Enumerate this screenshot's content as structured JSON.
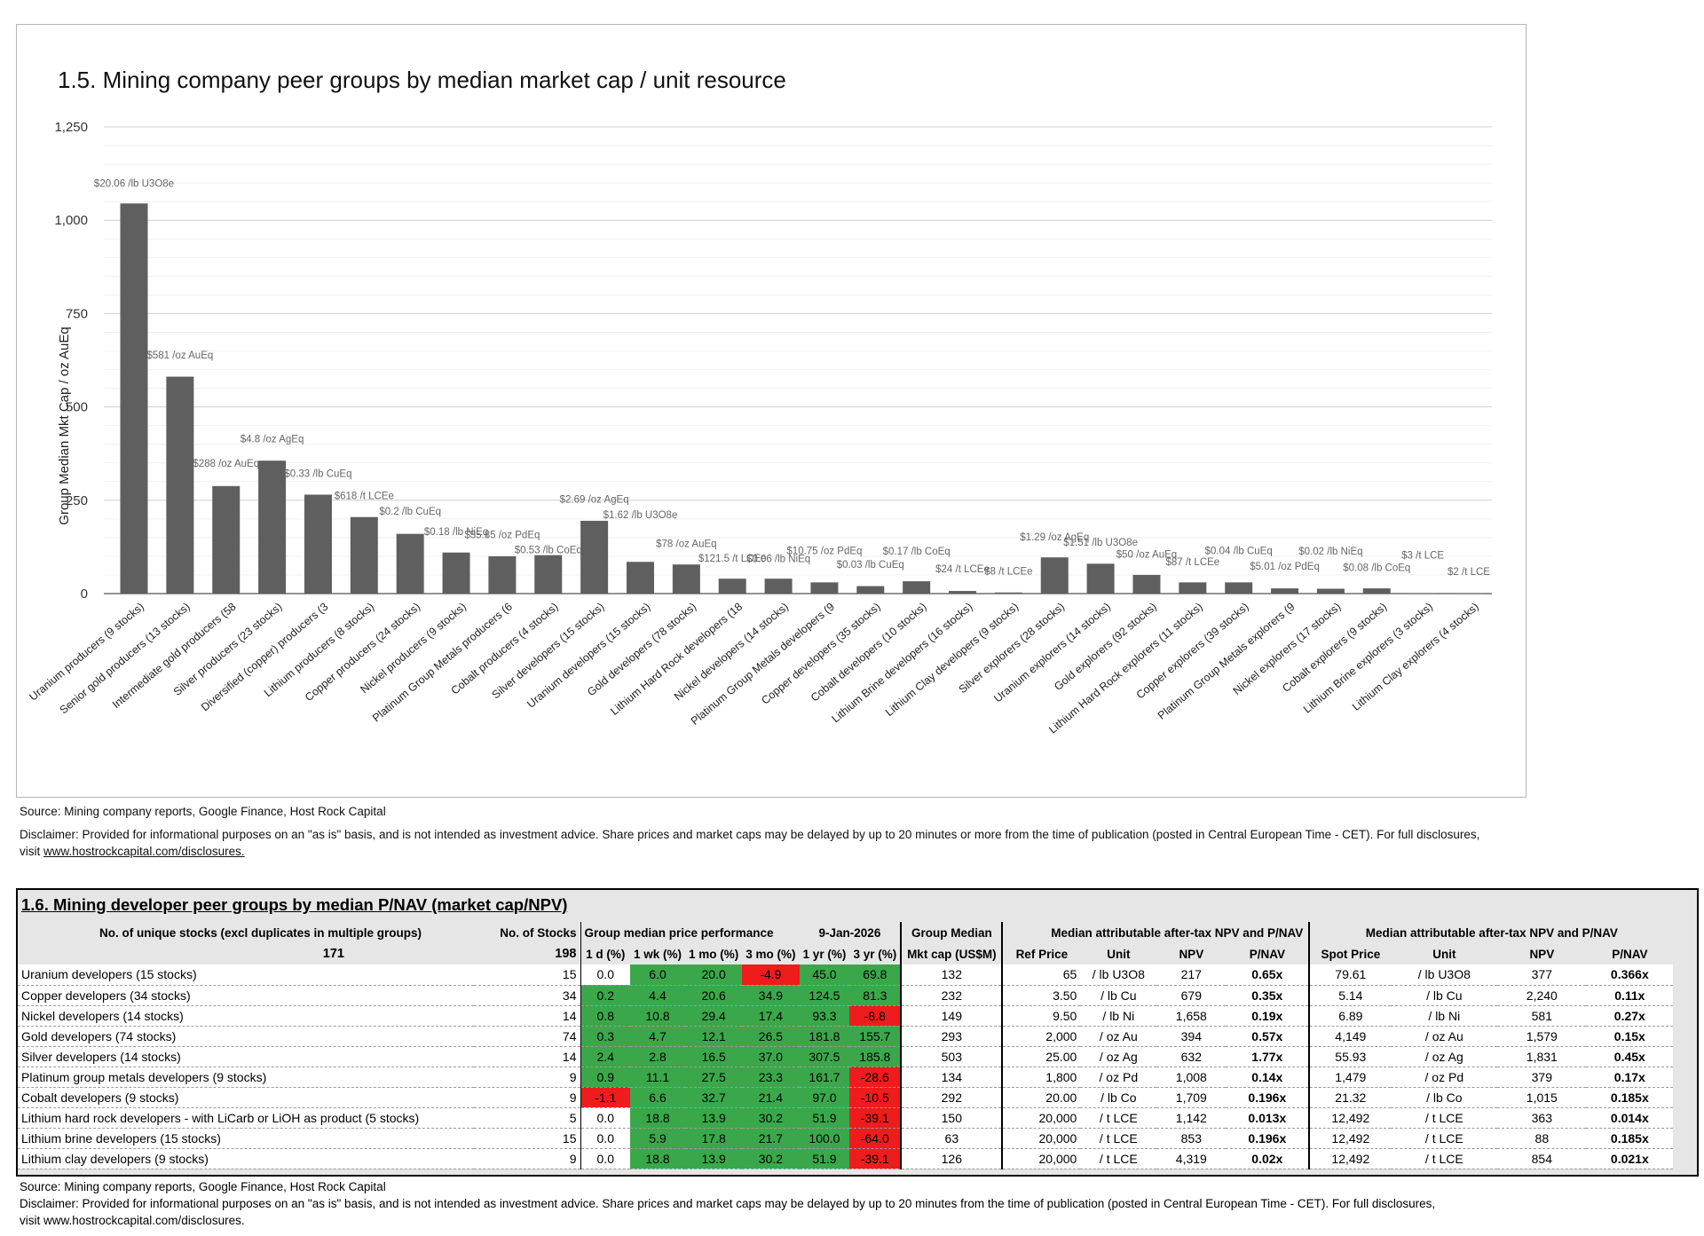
{
  "chart_data": {
    "type": "bar",
    "title": "1.5. Mining company peer groups by median market cap / unit resource",
    "xlabel": "",
    "ylabel": "Group Median Mkt Cap / oz AuEq",
    "ylim": [
      0,
      1250
    ],
    "yticks": [
      0,
      250,
      500,
      750,
      "1,000",
      "1,250"
    ],
    "ytick_values": [
      0,
      250,
      500,
      750,
      1000,
      1250
    ],
    "grid": true,
    "categories": [
      "Uranium producers (9 stocks)",
      "Senior gold producers (13 stocks)",
      "Intermediate gold producers (58",
      "Silver producers (23 stocks)",
      "Diversified (copper) producers (3",
      "Lithium producers (8 stocks)",
      "Copper producers (24 stocks)",
      "Nickel producers (9 stocks)",
      "Platinum Group Metals producers (6",
      "Cobalt producers (4 stocks)",
      "Silver developers (15 stocks)",
      "Uranium developers (15 stocks)",
      "Gold developers (78 stocks)",
      "Lithium Hard Rock developers (18",
      "Nickel developers (14 stocks)",
      "Platinum Group Metals developers (9",
      "Copper developers (35 stocks)",
      "Cobalt developers (10 stocks)",
      "Lithium Brine developers (16 stocks)",
      "Lithium Clay developers (9 stocks)",
      "Silver explorers (28 stocks)",
      "Uranium explorers (14 stocks)",
      "Gold explorers (92 stocks)",
      "Lithium Hard Rock explorers (11 stocks)",
      "Copper explorers (39 stocks)",
      "Platinum Group Metals explorers (9",
      "Nickel explorers (17 stocks)",
      "Cobalt explorers (9 stocks)",
      "Lithium Brine explorers (3 stocks)",
      "Lithium Clay explorers (4 stocks)"
    ],
    "values": [
      1045,
      581,
      288,
      356,
      265,
      205,
      160,
      110,
      100,
      103,
      195,
      85,
      78,
      40,
      40,
      30,
      20,
      33,
      7,
      3,
      97,
      80,
      50,
      30,
      30,
      14,
      13,
      14,
      1,
      1
    ],
    "data_labels": [
      "$20.06 /lb U3O8e",
      "$581 /oz AuEq",
      "$288 /oz AuEq",
      "$4.8 /oz AgEq",
      "$0.33 /lb CuEq",
      "$618 /t LCEe",
      "$0.2 /lb CuEq",
      "$0.18 /lb NiEq",
      "$35.85 /oz PdEq",
      "$0.53 /lb CoEq",
      "$2.69 /oz AgEq",
      "$1.62 /lb U3O8e",
      "$78 /oz AuEq",
      "$121.5 /t LCEe",
      "$0.06 /lb NiEq",
      "$10.75 /oz PdEq",
      "$0.03 /lb CuEq",
      "$0.17 /lb CoEq",
      "$24 /t LCEe",
      "$8 /t LCEe",
      "$1.29 /oz AgEq",
      "$1.51 /lb U3O8e",
      "$50 /oz AuEq",
      "$87 /t LCEe",
      "$0.04 /lb CuEq",
      "$5.01 /oz PdEq",
      "$0.02 /lb NiEq",
      "$0.08 /lb CoEq",
      "$3 /t LCE",
      "$2 /t LCE"
    ],
    "label_values": [
      1090,
      630,
      340,
      405,
      312,
      253,
      212,
      157,
      148,
      108,
      243,
      202,
      125,
      86,
      84,
      106,
      69,
      105,
      57,
      51,
      143,
      128,
      96,
      76,
      106,
      64,
      105,
      61,
      94,
      50
    ],
    "bar_color": "#5f5f5f"
  },
  "chart_source": "Source: Mining company reports, Google Finance, Host Rock Capital",
  "chart_disclaimer": "Disclaimer: Provided for informational purposes on an \"as is\" basis, and is not intended as investment advice. Share prices and market caps may be delayed by up to 20 minutes or more from the time of publication (posted in Central European Time - CET). For full disclosures,",
  "chart_disclaimer_visit": "visit",
  "chart_disclaimer_link": "www.hostrockcapital.com/disclosures.",
  "table": {
    "title": "1.6. Mining developer peer groups by median P/NAV (market cap/NPV)",
    "hdr_unique": "No. of unique stocks (excl duplicates in multiple groups)",
    "hdr_nstocks": "No. of Stocks",
    "hdr_perf": "Group median price performance",
    "hdr_date": "9-Jan-2026",
    "hdr_group_median": "Group Median",
    "hdr_npv1": "Median attributable after-tax NPV and P/NAV",
    "hdr_npv2": "Median attributable after-tax NPV and P/NAV",
    "unique_count": "171",
    "total_stocks": "198",
    "col_1d": "1 d (%)",
    "col_1wk": "1 wk (%)",
    "col_1mo": "1 mo (%)",
    "col_3mo": "3 mo (%)",
    "col_1yr": "1 yr (%)",
    "col_3yr": "3 yr (%)",
    "col_mktcap": "Mkt cap (US$M)",
    "col_refprice": "Ref Price",
    "col_unit": "Unit",
    "col_npv": "NPV",
    "col_pnav": "P/NAV",
    "col_spot": "Spot Price",
    "col_unit2": "Unit",
    "col_npv2": "NPV",
    "col_pnav2": "P/NAV",
    "rows": [
      {
        "name": "Uranium developers (15 stocks)",
        "n": "15",
        "d1": "0.0",
        "wk1": "6.0",
        "mo1": "20.0",
        "mo3": "-4.9",
        "yr1": "45.0",
        "yr3": "69.8",
        "mcap": "132",
        "ref": "65",
        "unit": "/ lb U3O8",
        "npv": "217",
        "pnav": "0.65x",
        "spot": "79.61",
        "unit2": "/ lb U3O8",
        "npv2": "377",
        "pnav2": "0.366x"
      },
      {
        "name": "Copper developers (34 stocks)",
        "n": "34",
        "d1": "0.2",
        "wk1": "4.4",
        "mo1": "20.6",
        "mo3": "34.9",
        "yr1": "124.5",
        "yr3": "81.3",
        "mcap": "232",
        "ref": "3.50",
        "unit": "/ lb Cu",
        "npv": "679",
        "pnav": "0.35x",
        "spot": "5.14",
        "unit2": "/ lb Cu",
        "npv2": "2,240",
        "pnav2": "0.11x"
      },
      {
        "name": "Nickel developers (14 stocks)",
        "n": "14",
        "d1": "0.8",
        "wk1": "10.8",
        "mo1": "29.4",
        "mo3": "17.4",
        "yr1": "93.3",
        "yr3": "-8.8",
        "mcap": "149",
        "ref": "9.50",
        "unit": "/ lb Ni",
        "npv": "1,658",
        "pnav": "0.19x",
        "spot": "6.89",
        "unit2": "/ lb Ni",
        "npv2": "581",
        "pnav2": "0.27x"
      },
      {
        "name": "Gold developers (74 stocks)",
        "n": "74",
        "d1": "0.3",
        "wk1": "4.7",
        "mo1": "12.1",
        "mo3": "26.5",
        "yr1": "181.8",
        "yr3": "155.7",
        "mcap": "293",
        "ref": "2,000",
        "unit": "/ oz Au",
        "npv": "394",
        "pnav": "0.57x",
        "spot": "4,149",
        "unit2": "/ oz Au",
        "npv2": "1,579",
        "pnav2": "0.15x"
      },
      {
        "name": "Silver developers (14 stocks)",
        "n": "14",
        "d1": "2.4",
        "wk1": "2.8",
        "mo1": "16.5",
        "mo3": "37.0",
        "yr1": "307.5",
        "yr3": "185.8",
        "mcap": "503",
        "ref": "25.00",
        "unit": "/ oz Ag",
        "npv": "632",
        "pnav": "1.77x",
        "spot": "55.93",
        "unit2": "/ oz Ag",
        "npv2": "1,831",
        "pnav2": "0.45x"
      },
      {
        "name": "Platinum group metals developers (9 stocks)",
        "n": "9",
        "d1": "0.9",
        "wk1": "11.1",
        "mo1": "27.5",
        "mo3": "23.3",
        "yr1": "161.7",
        "yr3": "-28.6",
        "mcap": "134",
        "ref": "1,800",
        "unit": "/ oz Pd",
        "npv": "1,008",
        "pnav": "0.14x",
        "spot": "1,479",
        "unit2": "/ oz Pd",
        "npv2": "379",
        "pnav2": "0.17x"
      },
      {
        "name": "Cobalt developers (9 stocks)",
        "n": "9",
        "d1": "-1.1",
        "wk1": "6.6",
        "mo1": "32.7",
        "mo3": "21.4",
        "yr1": "97.0",
        "yr3": "-10.5",
        "mcap": "292",
        "ref": "20.00",
        "unit": "/ lb Co",
        "npv": "1,709",
        "pnav": "0.196x",
        "spot": "21.32",
        "unit2": "/ lb Co",
        "npv2": "1,015",
        "pnav2": "0.185x"
      },
      {
        "name": "Lithium hard rock developers - with LiCarb or LiOH as product (5 stocks)",
        "n": "5",
        "d1": "0.0",
        "wk1": "18.8",
        "mo1": "13.9",
        "mo3": "30.2",
        "yr1": "51.9",
        "yr3": "-39.1",
        "mcap": "150",
        "ref": "20,000",
        "unit": "/ t LCE",
        "npv": "1,142",
        "pnav": "0.013x",
        "spot": "12,492",
        "unit2": "/ t LCE",
        "npv2": "363",
        "pnav2": "0.014x"
      },
      {
        "name": "Lithium brine developers (15 stocks)",
        "n": "15",
        "d1": "0.0",
        "wk1": "5.9",
        "mo1": "17.8",
        "mo3": "21.7",
        "yr1": "100.0",
        "yr3": "-64.0",
        "mcap": "63",
        "ref": "20,000",
        "unit": "/ t LCE",
        "npv": "853",
        "pnav": "0.196x",
        "spot": "12,492",
        "unit2": "/ t LCE",
        "npv2": "88",
        "pnav2": "0.185x"
      },
      {
        "name": "Lithium clay developers (9 stocks)",
        "n": "9",
        "d1": "0.0",
        "wk1": "18.8",
        "mo1": "13.9",
        "mo3": "30.2",
        "yr1": "51.9",
        "yr3": "-39.1",
        "mcap": "126",
        "ref": "20,000",
        "unit": "/ t LCE",
        "npv": "4,319",
        "pnav": "0.02x",
        "spot": "12,492",
        "unit2": "/ t LCE",
        "npv2": "854",
        "pnav2": "0.021x"
      }
    ]
  },
  "table_source": "Source: Mining company reports, Google Finance, Host Rock Capital",
  "table_disclaimer": "Disclaimer: Provided for informational purposes on an \"as is\" basis, and is not intended as investment advice. Share prices and market caps may be delayed by up to 20 minutes from the time of publication (posted in Central European Time - CET). For full disclosures,",
  "table_disclaimer_link": "visit www.hostrockcapital.com/disclosures.",
  "colors": {
    "bar": "#5f5f5f",
    "green": "#3aa84a",
    "red": "#ee1c1c",
    "header_bg": "#e6e6e6",
    "grid": "#d9d9d9"
  }
}
